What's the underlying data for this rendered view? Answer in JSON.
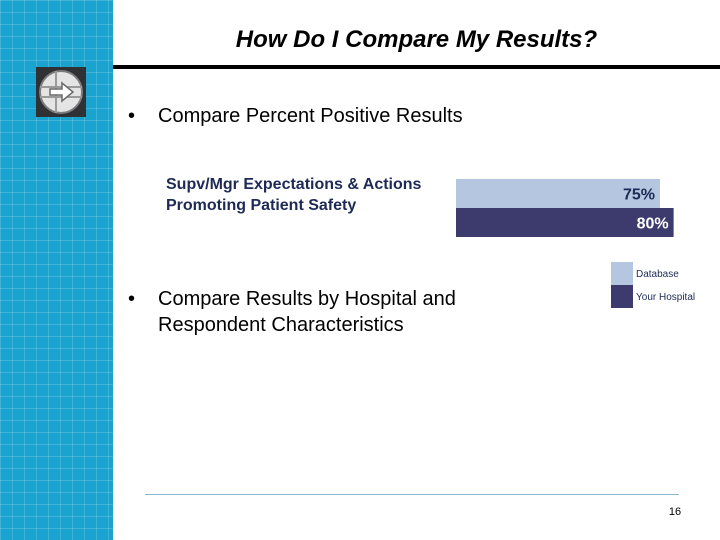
{
  "slide": {
    "title": "How Do I Compare My Results?",
    "page_number": "16"
  },
  "bullets": [
    {
      "marker": "•",
      "text": "Compare Percent Positive Results"
    },
    {
      "marker": "•",
      "text": "Compare Results by Hospital and Respondent Characteristics"
    }
  ],
  "colors": {
    "sidebar": "#1aa3cf",
    "database": "#b4c6e0",
    "your_hospital": "#3d3a6e"
  },
  "chart_data": {
    "type": "bar",
    "orientation": "horizontal",
    "categories": [
      "Supv/Mgr Expectations & Actions Promoting Patient Safety"
    ],
    "category_lines": [
      "Supv/Mgr Expectations & Actions",
      "Promoting Patient Safety"
    ],
    "series": [
      {
        "name": "Database",
        "values": [
          75
        ],
        "labels": [
          "75%"
        ],
        "color": "#b4c6e0"
      },
      {
        "name": "Your Hospital",
        "values": [
          80
        ],
        "labels": [
          "80%"
        ],
        "color": "#3d3a6e"
      }
    ],
    "xlim": [
      0,
      100
    ],
    "legend": {
      "position": "right",
      "entries": [
        "Database",
        "Your Hospital"
      ]
    },
    "title": "",
    "xlabel": "",
    "ylabel": ""
  }
}
